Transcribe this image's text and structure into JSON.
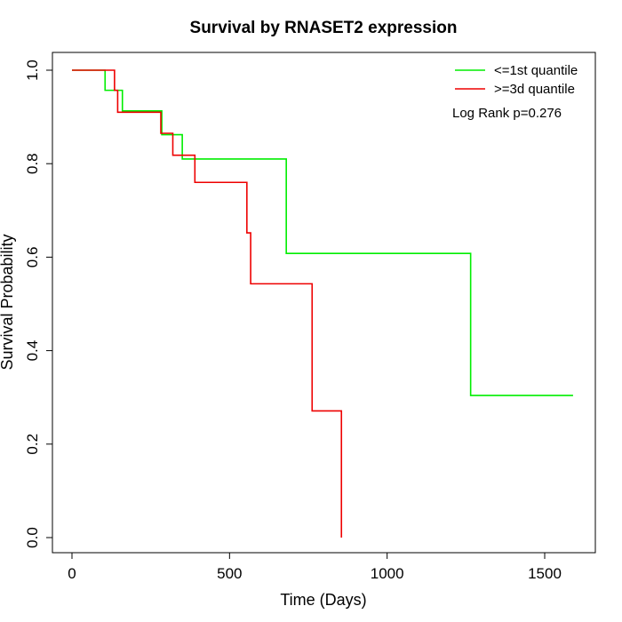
{
  "chart_data": {
    "type": "line",
    "title": "Survival by RNASET2 expression",
    "xlabel": "Time (Days)",
    "ylabel": "Survival Probability",
    "xlim": [
      0,
      1650
    ],
    "ylim": [
      0,
      1
    ],
    "xticks": [
      0,
      500,
      1000,
      1500
    ],
    "yticks": [
      0.0,
      0.2,
      0.4,
      0.6,
      0.8,
      1.0
    ],
    "xtick_labels": [
      "0",
      "500",
      "1000",
      "1500"
    ],
    "ytick_labels": [
      "0.0",
      "0.2",
      "0.4",
      "0.6",
      "0.8",
      "1.0"
    ],
    "legend_position": "top-right",
    "annotation": "Log Rank p=0.276",
    "series": [
      {
        "name": "<=1st quantile",
        "color": "#00ee00",
        "steps": [
          [
            0,
            1.0
          ],
          [
            105,
            0.957
          ],
          [
            160,
            0.913
          ],
          [
            285,
            0.862
          ],
          [
            350,
            0.81
          ],
          [
            680,
            0.608
          ],
          [
            1265,
            0.304
          ],
          [
            1590,
            0.304
          ]
        ]
      },
      {
        "name": ">=3d quantile",
        "color": "#ee0000",
        "steps": [
          [
            0,
            1.0
          ],
          [
            135,
            0.957
          ],
          [
            145,
            0.91
          ],
          [
            282,
            0.865
          ],
          [
            320,
            0.818
          ],
          [
            390,
            0.76
          ],
          [
            555,
            0.652
          ],
          [
            567,
            0.543
          ],
          [
            762,
            0.271
          ],
          [
            855,
            0.0
          ]
        ]
      }
    ]
  }
}
